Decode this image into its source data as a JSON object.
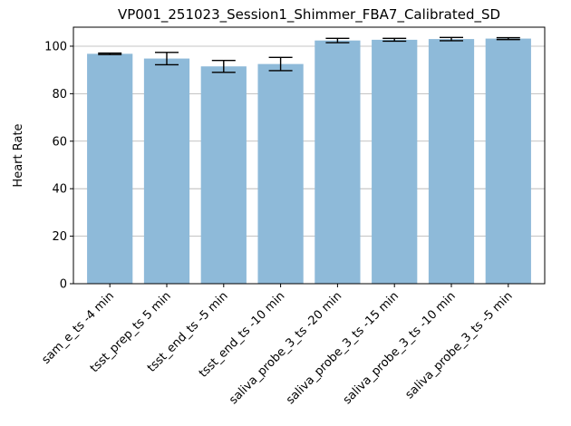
{
  "chart_data": {
    "type": "bar",
    "title": "VP001_251023_Session1_Shimmer_FBA7_Calibrated_SD",
    "xlabel": "",
    "ylabel": "Heart Rate",
    "categories": [
      "sam_e_ts -4 min",
      "tsst_prep_ts 5 min",
      "tsst_end_ts -5 min",
      "tsst_end_ts -10 min",
      "saliva_probe_3_ts -20 min",
      "saliva_probe_3_ts -15 min",
      "saliva_probe_3_ts -10 min",
      "saliva_probe_3_ts -5 min"
    ],
    "values": [
      96.8,
      94.8,
      91.5,
      92.5,
      102.4,
      102.7,
      103.0,
      103.2
    ],
    "errors": [
      0.3,
      2.6,
      2.5,
      2.8,
      0.9,
      0.6,
      0.7,
      0.4
    ],
    "ylim": [
      0,
      108
    ],
    "yticks": [
      0,
      20,
      40,
      60,
      80,
      100
    ],
    "grid": "y",
    "colors": {
      "bar": "#8ebad9",
      "error": "#000000",
      "grid": "#b0b0b0",
      "axis": "#000000"
    }
  }
}
